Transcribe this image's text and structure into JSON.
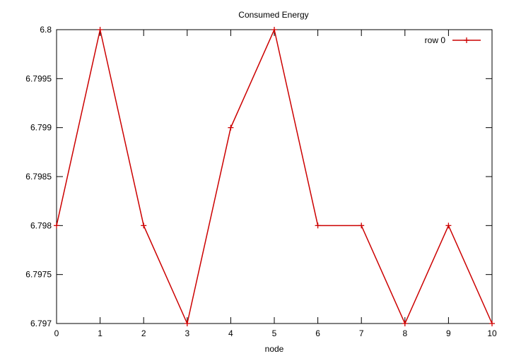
{
  "chart_data": {
    "type": "line",
    "title": "Consumed Energy",
    "xlabel": "node",
    "ylabel": "",
    "x": [
      0,
      1,
      2,
      3,
      4,
      5,
      6,
      7,
      8,
      9,
      10
    ],
    "series": [
      {
        "name": "row 0",
        "values": [
          6.798,
          6.8,
          6.798,
          6.797,
          6.799,
          6.8,
          6.798,
          6.798,
          6.797,
          6.798,
          6.797
        ],
        "color": "#cc0000",
        "marker": "plus"
      }
    ],
    "xlim": [
      0,
      10
    ],
    "ylim": [
      6.797,
      6.8
    ],
    "xticks": [
      "0",
      "1",
      "2",
      "3",
      "4",
      "5",
      "6",
      "7",
      "8",
      "9",
      "10"
    ],
    "yticks": [
      "6.797",
      "6.7975",
      "6.798",
      "6.7985",
      "6.799",
      "6.7995",
      "6.8"
    ],
    "grid": false,
    "legend_position": "top-right"
  }
}
